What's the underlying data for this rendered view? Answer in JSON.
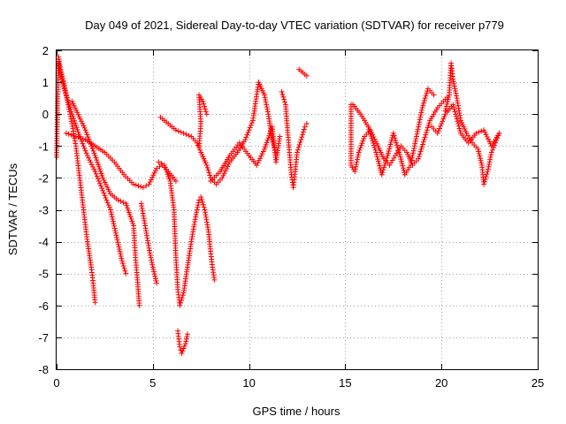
{
  "chart_data": {
    "type": "scatter",
    "title": "Day 049 of 2021, Sidereal Day-to-day VTEC variation (SDTVAR) for receiver p779",
    "xlabel": "GPS time / hours",
    "ylabel": "SDTVAR / TECUs",
    "xlim": [
      0,
      25
    ],
    "ylim": [
      -8,
      2
    ],
    "xticks": [
      0,
      5,
      10,
      15,
      20,
      25
    ],
    "yticks": [
      -8,
      -7,
      -6,
      -5,
      -4,
      -3,
      -2,
      -1,
      0,
      1,
      2
    ],
    "grid": true,
    "marker": "+",
    "color": "#ff0000",
    "series": [
      {
        "name": "trace-1",
        "points": [
          [
            0.0,
            -1.35
          ],
          [
            0.1,
            1.8
          ],
          [
            0.2,
            1.4
          ],
          [
            0.4,
            0.9
          ],
          [
            0.6,
            0.3
          ],
          [
            0.8,
            -0.3
          ],
          [
            1.0,
            -1.0
          ],
          [
            1.2,
            -2.0
          ],
          [
            1.4,
            -3.0
          ],
          [
            1.6,
            -4.0
          ],
          [
            1.8,
            -4.8
          ],
          [
            1.9,
            -5.3
          ],
          [
            2.0,
            -5.9
          ]
        ]
      },
      {
        "name": "trace-2",
        "points": [
          [
            0.1,
            1.6
          ],
          [
            0.4,
            0.8
          ],
          [
            0.8,
            0.0
          ],
          [
            1.2,
            -0.7
          ],
          [
            1.6,
            -1.3
          ],
          [
            2.0,
            -1.8
          ],
          [
            2.4,
            -2.4
          ],
          [
            2.8,
            -3.0
          ],
          [
            3.1,
            -3.8
          ],
          [
            3.4,
            -4.6
          ],
          [
            3.6,
            -5.0
          ]
        ]
      },
      {
        "name": "trace-3",
        "points": [
          [
            0.5,
            -0.6
          ],
          [
            1.0,
            -0.7
          ],
          [
            1.5,
            -0.8
          ],
          [
            2.0,
            -1.0
          ],
          [
            2.5,
            -1.2
          ],
          [
            3.0,
            -1.5
          ],
          [
            3.5,
            -1.9
          ],
          [
            4.0,
            -2.2
          ],
          [
            4.5,
            -2.3
          ],
          [
            4.8,
            -2.2
          ],
          [
            5.2,
            -1.7
          ],
          [
            5.5,
            -1.6
          ],
          [
            5.8,
            -1.8
          ],
          [
            6.2,
            -2.1
          ]
        ]
      },
      {
        "name": "trace-4",
        "points": [
          [
            0.8,
            0.4
          ],
          [
            1.5,
            -0.5
          ],
          [
            2.0,
            -1.3
          ],
          [
            2.4,
            -2.0
          ],
          [
            2.8,
            -2.5
          ],
          [
            3.2,
            -2.7
          ],
          [
            3.6,
            -2.8
          ],
          [
            4.0,
            -3.5
          ],
          [
            4.1,
            -4.5
          ],
          [
            4.2,
            -5.2
          ],
          [
            4.3,
            -6.0
          ]
        ]
      },
      {
        "name": "trace-5",
        "points": [
          [
            4.4,
            -2.8
          ],
          [
            4.6,
            -3.5
          ],
          [
            4.8,
            -4.2
          ],
          [
            5.0,
            -4.8
          ],
          [
            5.2,
            -5.3
          ]
        ]
      },
      {
        "name": "trace-6",
        "points": [
          [
            5.3,
            -1.5
          ],
          [
            5.6,
            -1.6
          ],
          [
            5.9,
            -2.1
          ],
          [
            6.1,
            -3.0
          ],
          [
            6.2,
            -4.5
          ],
          [
            6.3,
            -5.5
          ],
          [
            6.4,
            -6.0
          ],
          [
            6.6,
            -5.6
          ],
          [
            6.8,
            -4.8
          ],
          [
            7.0,
            -4.0
          ],
          [
            7.2,
            -3.3
          ],
          [
            7.4,
            -2.7
          ]
        ]
      },
      {
        "name": "trace-7",
        "points": [
          [
            6.3,
            -6.8
          ],
          [
            6.4,
            -7.3
          ],
          [
            6.5,
            -7.5
          ],
          [
            6.7,
            -7.2
          ],
          [
            6.8,
            -6.9
          ]
        ]
      },
      {
        "name": "trace-8",
        "points": [
          [
            7.5,
            -2.6
          ],
          [
            7.7,
            -3.0
          ],
          [
            7.9,
            -3.7
          ],
          [
            8.0,
            -4.3
          ],
          [
            8.1,
            -4.8
          ],
          [
            8.2,
            -5.2
          ]
        ]
      },
      {
        "name": "trace-9",
        "points": [
          [
            5.4,
            -0.1
          ],
          [
            5.8,
            -0.3
          ],
          [
            6.2,
            -0.5
          ],
          [
            6.6,
            -0.6
          ],
          [
            7.0,
            -0.7
          ],
          [
            7.3,
            -0.9
          ],
          [
            7.5,
            -1.2
          ],
          [
            7.8,
            -1.6
          ],
          [
            8.0,
            -2.0
          ],
          [
            8.3,
            -2.2
          ],
          [
            8.6,
            -2.0
          ],
          [
            9.0,
            -1.5
          ],
          [
            9.4,
            -1.2
          ],
          [
            9.8,
            -0.8
          ],
          [
            10.2,
            -0.2
          ],
          [
            10.5,
            1.0
          ],
          [
            10.8,
            0.6
          ],
          [
            11.0,
            0.0
          ],
          [
            11.2,
            -0.8
          ],
          [
            11.4,
            -1.2
          ]
        ]
      },
      {
        "name": "trace-10",
        "points": [
          [
            7.4,
            -1.0
          ],
          [
            7.5,
            -0.3
          ],
          [
            7.4,
            0.6
          ],
          [
            7.6,
            0.4
          ],
          [
            7.8,
            0.0
          ]
        ]
      },
      {
        "name": "trace-11",
        "points": [
          [
            8.0,
            -2.1
          ],
          [
            8.5,
            -1.8
          ],
          [
            9.0,
            -1.3
          ],
          [
            9.5,
            -0.9
          ],
          [
            10.0,
            -1.3
          ],
          [
            10.4,
            -1.6
          ],
          [
            10.8,
            -1.1
          ],
          [
            11.2,
            -0.4
          ],
          [
            11.4,
            -1.5
          ],
          [
            11.6,
            -0.7
          ]
        ]
      },
      {
        "name": "trace-12",
        "points": [
          [
            11.7,
            0.7
          ],
          [
            11.9,
            0.3
          ],
          [
            12.0,
            -0.5
          ],
          [
            12.1,
            -1.2
          ],
          [
            12.2,
            -1.9
          ],
          [
            12.3,
            -2.3
          ],
          [
            12.4,
            -1.8
          ],
          [
            12.5,
            -1.2
          ],
          [
            12.7,
            -0.8
          ],
          [
            12.9,
            -0.4
          ],
          [
            13.0,
            -0.3
          ]
        ]
      },
      {
        "name": "trace-13",
        "points": [
          [
            12.6,
            1.4
          ],
          [
            12.8,
            1.3
          ],
          [
            13.0,
            1.2
          ]
        ]
      },
      {
        "name": "trace-14",
        "points": [
          [
            15.3,
            0.3
          ],
          [
            15.3,
            -1.6
          ],
          [
            15.5,
            -1.8
          ],
          [
            15.7,
            -1.2
          ],
          [
            16.0,
            -0.7
          ],
          [
            16.3,
            -0.5
          ],
          [
            16.7,
            -1.0
          ],
          [
            17.0,
            -1.4
          ],
          [
            17.3,
            -1.6
          ],
          [
            17.6,
            -1.3
          ],
          [
            17.9,
            -1.0
          ],
          [
            18.2,
            -1.2
          ],
          [
            18.5,
            -1.6
          ],
          [
            18.8,
            -1.4
          ],
          [
            19.1,
            -0.8
          ],
          [
            19.4,
            -0.2
          ],
          [
            19.8,
            0.2
          ],
          [
            20.1,
            0.4
          ],
          [
            20.4,
            0.6
          ]
        ]
      },
      {
        "name": "trace-15",
        "points": [
          [
            15.4,
            0.3
          ],
          [
            15.8,
            0.0
          ],
          [
            16.2,
            -0.4
          ],
          [
            16.6,
            -1.2
          ],
          [
            16.9,
            -1.9
          ],
          [
            17.2,
            -1.3
          ],
          [
            17.5,
            -0.6
          ],
          [
            17.8,
            -1.2
          ],
          [
            18.1,
            -1.9
          ],
          [
            18.4,
            -1.6
          ],
          [
            18.7,
            -0.7
          ],
          [
            19.0,
            0.2
          ],
          [
            19.3,
            0.8
          ],
          [
            19.6,
            0.6
          ]
        ]
      },
      {
        "name": "trace-16",
        "points": [
          [
            20.2,
            0.1
          ],
          [
            20.4,
            0.6
          ],
          [
            20.5,
            1.6
          ],
          [
            20.6,
            1.1
          ],
          [
            20.8,
            0.5
          ],
          [
            21.0,
            -0.2
          ],
          [
            21.3,
            -0.6
          ],
          [
            21.6,
            -0.9
          ],
          [
            21.9,
            -1.1
          ],
          [
            22.1,
            -1.6
          ],
          [
            22.2,
            -2.2
          ],
          [
            22.4,
            -1.8
          ],
          [
            22.6,
            -1.2
          ],
          [
            22.8,
            -0.9
          ],
          [
            23.0,
            -0.6
          ]
        ]
      },
      {
        "name": "trace-17",
        "points": [
          [
            19.5,
            -0.4
          ],
          [
            19.8,
            -0.6
          ],
          [
            20.2,
            0.0
          ],
          [
            20.6,
            0.3
          ],
          [
            21.0,
            -0.6
          ],
          [
            21.4,
            -0.9
          ],
          [
            21.8,
            -0.6
          ],
          [
            22.2,
            -0.5
          ],
          [
            22.6,
            -1.0
          ],
          [
            23.0,
            -0.6
          ]
        ]
      }
    ]
  }
}
